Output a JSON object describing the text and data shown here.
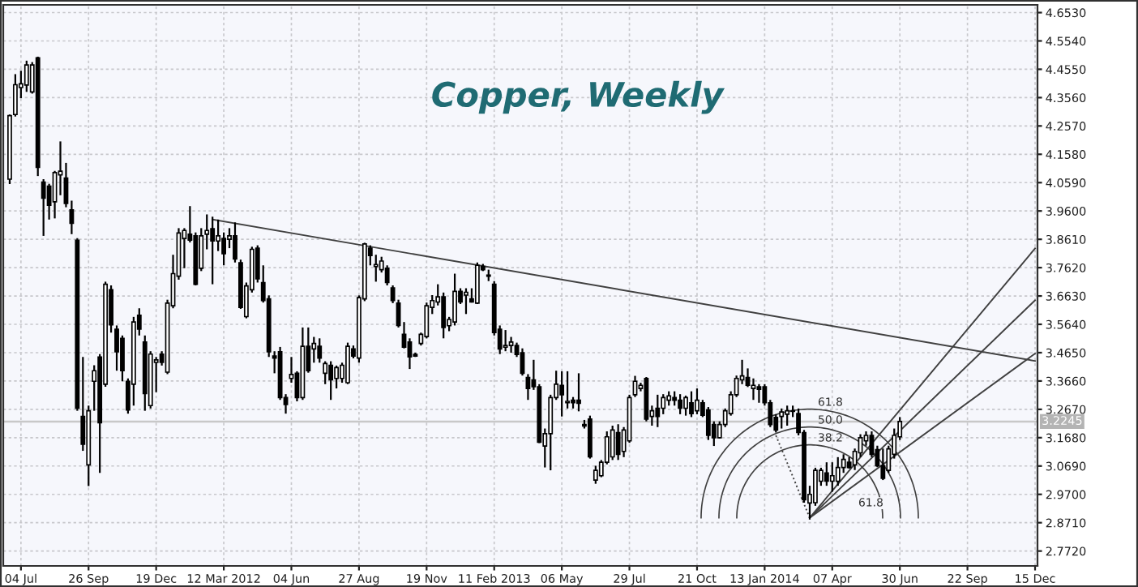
{
  "chart_data": {
    "type": "candlestick",
    "title": "Copper, Weekly",
    "x": [
      "2011-06-20",
      "2011-06-27",
      "2011-07-04",
      "2011-07-11",
      "2011-07-18",
      "2011-07-25",
      "2011-08-01",
      "2011-08-08",
      "2011-08-15",
      "2011-08-22",
      "2011-08-29",
      "2011-09-05",
      "2011-09-12",
      "2011-09-19",
      "2011-09-26",
      "2011-10-03",
      "2011-10-10",
      "2011-10-17",
      "2011-10-24",
      "2011-10-31",
      "2011-11-07",
      "2011-11-14",
      "2011-11-21",
      "2011-11-28",
      "2011-12-05",
      "2011-12-12",
      "2011-12-19",
      "2011-12-26",
      "2012-01-02",
      "2012-01-09",
      "2012-01-16",
      "2012-01-23",
      "2012-01-30",
      "2012-02-06",
      "2012-02-13",
      "2012-02-20",
      "2012-02-27",
      "2012-03-05",
      "2012-03-12",
      "2012-03-19",
      "2012-03-26",
      "2012-04-02",
      "2012-04-09",
      "2012-04-16",
      "2012-04-23",
      "2012-04-30",
      "2012-05-07",
      "2012-05-14",
      "2012-05-21",
      "2012-05-28",
      "2012-06-04",
      "2012-06-11",
      "2012-06-18",
      "2012-06-25",
      "2012-07-02",
      "2012-07-09",
      "2012-07-16",
      "2012-07-23",
      "2012-07-30",
      "2012-08-06",
      "2012-08-13",
      "2012-08-20",
      "2012-08-27",
      "2012-09-03",
      "2012-09-10",
      "2012-09-17",
      "2012-09-24",
      "2012-10-01",
      "2012-10-08",
      "2012-10-15",
      "2012-10-22",
      "2012-10-29",
      "2012-11-05",
      "2012-11-12",
      "2012-11-19",
      "2012-11-26",
      "2012-12-03",
      "2012-12-10",
      "2012-12-17",
      "2012-12-24",
      "2012-12-31",
      "2013-01-07",
      "2013-01-14",
      "2013-01-21",
      "2013-01-28",
      "2013-02-04",
      "2013-02-11",
      "2013-02-18",
      "2013-02-25",
      "2013-03-04",
      "2013-03-11",
      "2013-03-18",
      "2013-03-25",
      "2013-04-01",
      "2013-04-08",
      "2013-04-15",
      "2013-04-22",
      "2013-04-29",
      "2013-05-06",
      "2013-05-13",
      "2013-05-20",
      "2013-05-27",
      "2013-06-03",
      "2013-06-10",
      "2013-06-17",
      "2013-06-24",
      "2013-07-01",
      "2013-07-08",
      "2013-07-15",
      "2013-07-22",
      "2013-07-29",
      "2013-08-05",
      "2013-08-12",
      "2013-08-19",
      "2013-08-26",
      "2013-09-02",
      "2013-09-09",
      "2013-09-16",
      "2013-09-23",
      "2013-09-30",
      "2013-10-07",
      "2013-10-14",
      "2013-10-21",
      "2013-10-28",
      "2013-11-04",
      "2013-11-11",
      "2013-11-18",
      "2013-11-25",
      "2013-12-02",
      "2013-12-09",
      "2013-12-16",
      "2013-12-23",
      "2013-12-30",
      "2014-01-06",
      "2014-01-13",
      "2014-01-20",
      "2014-01-27",
      "2014-02-03",
      "2014-02-10",
      "2014-02-17",
      "2014-02-24",
      "2014-03-03",
      "2014-03-10",
      "2014-03-17",
      "2014-03-24",
      "2014-03-31",
      "2014-04-07",
      "2014-04-14",
      "2014-04-21",
      "2014-04-28",
      "2014-05-05",
      "2014-05-12",
      "2014-05-19",
      "2014-05-26",
      "2014-06-02",
      "2014-06-09",
      "2014-06-16",
      "2014-06-23",
      "2014-06-30"
    ],
    "series": [
      {
        "type": "line",
        "x": [
          "2012-02-27",
          "2014-12-15"
        ],
        "values": [
          3.93,
          3.436
        ],
        "color": "#404040",
        "line_style": "solid"
      },
      {
        "type": "line",
        "x": [
          "2014-01-27",
          "2014-03-10"
        ],
        "values": [
          3.176,
          2.888
        ],
        "color": "#404040",
        "line_style": "dotted"
      },
      {
        "type": "line",
        "x": [
          "2014-03-10",
          "2014-12-15"
        ],
        "values": [
          2.888,
          3.829
        ],
        "color": "#404040",
        "line_style": "solid"
      },
      {
        "type": "line",
        "x": [
          "2014-03-10",
          "2014-12-15"
        ],
        "values": [
          2.888,
          3.648
        ],
        "color": "#404040",
        "line_style": "solid"
      },
      {
        "type": "line",
        "x": [
          "2014-03-10",
          "2014-12-15"
        ],
        "values": [
          2.888,
          3.462
        ],
        "color": "#404040",
        "line_style": "solid"
      },
      {
        "color": "#000000",
        "ohlc": [
          [
            4.071,
            4.297,
            4.054,
            4.293
          ],
          [
            4.297,
            4.438,
            4.29,
            4.401
          ],
          [
            4.391,
            4.45,
            4.354,
            4.404
          ],
          [
            4.4,
            4.485,
            4.376,
            4.47
          ],
          [
            4.376,
            4.48,
            4.37,
            4.47
          ],
          [
            4.495,
            4.499,
            4.082,
            4.112
          ],
          [
            4.061,
            4.071,
            3.873,
            4.005
          ],
          [
            4.047,
            4.055,
            3.93,
            3.98
          ],
          [
            3.992,
            4.1,
            3.934,
            4.094
          ],
          [
            4.086,
            4.203,
            4.015,
            4.099
          ],
          [
            4.075,
            4.128,
            3.973,
            3.986
          ],
          [
            3.964,
            3.996,
            3.879,
            3.917
          ],
          [
            3.858,
            3.865,
            3.262,
            3.271
          ],
          [
            3.242,
            3.45,
            3.122,
            3.145
          ],
          [
            3.073,
            3.28,
            2.999,
            3.262
          ],
          [
            3.365,
            3.421,
            3.262,
            3.402
          ],
          [
            3.45,
            3.46,
            3.045,
            3.22
          ],
          [
            3.355,
            3.713,
            3.346,
            3.704
          ],
          [
            3.685,
            3.7,
            3.535,
            3.562
          ],
          [
            3.547,
            3.56,
            3.402,
            3.468
          ],
          [
            3.515,
            3.525,
            3.365,
            3.402
          ],
          [
            3.365,
            3.375,
            3.252,
            3.265
          ],
          [
            3.355,
            3.59,
            3.28,
            3.572
          ],
          [
            3.596,
            3.62,
            3.525,
            3.547
          ],
          [
            3.502,
            3.525,
            3.262,
            3.322
          ],
          [
            3.28,
            3.47,
            3.27,
            3.46
          ],
          [
            3.431,
            3.45,
            3.327,
            3.44
          ],
          [
            3.46,
            3.47,
            3.42,
            3.431
          ],
          [
            3.397,
            3.65,
            3.39,
            3.638
          ],
          [
            3.629,
            3.807,
            3.62,
            3.741
          ],
          [
            3.732,
            3.9,
            3.72,
            3.883
          ],
          [
            3.864,
            3.9,
            3.76,
            3.892
          ],
          [
            3.879,
            3.977,
            3.85,
            3.858
          ],
          [
            3.873,
            3.885,
            3.7,
            3.704
          ],
          [
            3.76,
            3.9,
            3.75,
            3.873
          ],
          [
            3.879,
            3.948,
            3.826,
            3.892
          ],
          [
            3.898,
            3.94,
            3.704,
            3.855
          ],
          [
            3.855,
            3.93,
            3.82,
            3.873
          ],
          [
            3.864,
            3.885,
            3.77,
            3.811
          ],
          [
            3.861,
            3.9,
            3.83,
            3.873
          ],
          [
            3.873,
            3.92,
            3.78,
            3.792
          ],
          [
            3.779,
            3.79,
            3.618,
            3.623
          ],
          [
            3.591,
            3.71,
            3.585,
            3.698
          ],
          [
            3.685,
            3.835,
            3.675,
            3.826
          ],
          [
            3.83,
            3.84,
            3.71,
            3.723
          ],
          [
            3.71,
            3.77,
            3.64,
            3.647
          ],
          [
            3.653,
            3.665,
            3.45,
            3.468
          ],
          [
            3.453,
            3.47,
            3.393,
            3.446
          ],
          [
            3.468,
            3.485,
            3.3,
            3.308
          ],
          [
            3.308,
            3.32,
            3.252,
            3.284
          ],
          [
            3.375,
            3.45,
            3.36,
            3.389
          ],
          [
            3.393,
            3.4,
            3.295,
            3.308
          ],
          [
            3.308,
            3.553,
            3.3,
            3.487
          ],
          [
            3.487,
            3.553,
            3.395,
            3.402
          ],
          [
            3.478,
            3.52,
            3.43,
            3.497
          ],
          [
            3.487,
            3.515,
            3.43,
            3.446
          ],
          [
            3.393,
            3.435,
            3.355,
            3.427
          ],
          [
            3.421,
            3.435,
            3.3,
            3.37
          ],
          [
            3.375,
            3.42,
            3.34,
            3.413
          ],
          [
            3.375,
            3.43,
            3.36,
            3.421
          ],
          [
            3.36,
            3.5,
            3.355,
            3.487
          ],
          [
            3.478,
            3.49,
            3.445,
            3.453
          ],
          [
            3.446,
            3.665,
            3.43,
            3.657
          ],
          [
            3.653,
            3.849,
            3.645,
            3.845
          ],
          [
            3.83,
            3.84,
            3.77,
            3.804
          ],
          [
            3.766,
            3.807,
            3.713,
            3.773
          ],
          [
            3.755,
            3.8,
            3.745,
            3.785
          ],
          [
            3.76,
            3.77,
            3.7,
            3.71
          ],
          [
            3.691,
            3.7,
            3.638,
            3.647
          ],
          [
            3.638,
            3.65,
            3.553,
            3.56
          ],
          [
            3.529,
            3.572,
            3.48,
            3.484
          ],
          [
            3.502,
            3.515,
            3.408,
            3.45
          ],
          [
            3.459,
            3.465,
            3.45,
            3.453
          ],
          [
            3.497,
            3.535,
            3.49,
            3.529
          ],
          [
            3.521,
            3.64,
            3.515,
            3.629
          ],
          [
            3.623,
            3.666,
            3.6,
            3.647
          ],
          [
            3.642,
            3.704,
            3.63,
            3.66
          ],
          [
            3.66,
            3.675,
            3.515,
            3.553
          ],
          [
            3.559,
            3.59,
            3.54,
            3.581
          ],
          [
            3.572,
            3.741,
            3.56,
            3.679
          ],
          [
            3.679,
            3.69,
            3.635,
            3.642
          ],
          [
            3.666,
            3.69,
            3.6,
            3.676
          ],
          [
            3.653,
            3.69,
            3.64,
            3.642
          ],
          [
            3.638,
            3.78,
            3.635,
            3.77
          ],
          [
            3.766,
            3.775,
            3.75,
            3.755
          ],
          [
            3.736,
            3.755,
            3.715,
            3.732
          ],
          [
            3.704,
            3.715,
            3.525,
            3.535
          ],
          [
            3.547,
            3.56,
            3.46,
            3.478
          ],
          [
            3.484,
            3.544,
            3.47,
            3.49
          ],
          [
            3.49,
            3.52,
            3.465,
            3.502
          ],
          [
            3.49,
            3.5,
            3.45,
            3.459
          ],
          [
            3.465,
            3.48,
            3.385,
            3.393
          ],
          [
            3.378,
            3.39,
            3.3,
            3.34
          ],
          [
            3.37,
            3.44,
            3.335,
            3.346
          ],
          [
            3.346,
            3.355,
            3.149,
            3.152
          ],
          [
            3.139,
            3.2,
            3.064,
            3.182
          ],
          [
            3.182,
            3.318,
            3.054,
            3.308
          ],
          [
            3.308,
            3.402,
            3.3,
            3.355
          ],
          [
            3.351,
            3.4,
            3.242,
            3.318
          ],
          [
            3.29,
            3.4,
            3.27,
            3.295
          ],
          [
            3.299,
            3.31,
            3.27,
            3.29
          ],
          [
            3.299,
            3.393,
            3.26,
            3.288
          ],
          [
            3.214,
            3.23,
            3.2,
            3.209
          ],
          [
            3.233,
            3.245,
            3.095,
            3.101
          ],
          [
            3.02,
            3.07,
            3.007,
            3.054
          ],
          [
            3.035,
            3.09,
            3.03,
            3.082
          ],
          [
            3.082,
            3.19,
            3.075,
            3.171
          ],
          [
            3.101,
            3.21,
            3.09,
            3.195
          ],
          [
            3.186,
            3.215,
            3.09,
            3.11
          ],
          [
            3.12,
            3.205,
            3.1,
            3.195
          ],
          [
            3.157,
            3.318,
            3.15,
            3.308
          ],
          [
            3.318,
            3.384,
            3.31,
            3.365
          ],
          [
            3.34,
            3.36,
            3.33,
            3.351
          ],
          [
            3.375,
            3.38,
            3.225,
            3.233
          ],
          [
            3.242,
            3.28,
            3.21,
            3.262
          ],
          [
            3.271,
            3.318,
            3.205,
            3.242
          ],
          [
            3.271,
            3.32,
            3.25,
            3.308
          ],
          [
            3.299,
            3.33,
            3.28,
            3.314
          ],
          [
            3.308,
            3.33,
            3.28,
            3.299
          ],
          [
            3.299,
            3.32,
            3.25,
            3.271
          ],
          [
            3.271,
            3.315,
            3.245,
            3.308
          ],
          [
            3.29,
            3.33,
            3.24,
            3.252
          ],
          [
            3.262,
            3.34,
            3.25,
            3.299
          ],
          [
            3.29,
            3.3,
            3.24,
            3.246
          ],
          [
            3.265,
            3.275,
            3.16,
            3.176
          ],
          [
            3.214,
            3.225,
            3.139,
            3.168
          ],
          [
            3.168,
            3.225,
            3.165,
            3.214
          ],
          [
            3.214,
            3.27,
            3.205,
            3.262
          ],
          [
            3.252,
            3.33,
            3.245,
            3.318
          ],
          [
            3.318,
            3.385,
            3.31,
            3.375
          ],
          [
            3.37,
            3.44,
            3.355,
            3.384
          ],
          [
            3.378,
            3.41,
            3.345,
            3.351
          ],
          [
            3.34,
            3.375,
            3.3,
            3.351
          ],
          [
            3.346,
            3.355,
            3.29,
            3.337
          ],
          [
            3.346,
            3.355,
            3.28,
            3.29
          ],
          [
            3.29,
            3.3,
            3.205,
            3.214
          ],
          [
            3.239,
            3.25,
            3.186,
            3.195
          ],
          [
            3.242,
            3.27,
            3.2,
            3.258
          ],
          [
            3.25,
            3.28,
            3.21,
            3.262
          ],
          [
            3.26,
            3.28,
            3.24,
            3.262
          ],
          [
            3.252,
            3.27,
            3.176,
            3.186
          ],
          [
            3.186,
            3.195,
            2.941,
            2.951
          ],
          [
            2.94,
            3.0,
            2.882,
            2.97
          ],
          [
            2.941,
            3.063,
            2.93,
            3.054
          ],
          [
            3.016,
            3.063,
            3.0,
            3.054
          ],
          [
            3.045,
            3.082,
            3.0,
            3.016
          ],
          [
            3.016,
            3.082,
            2.979,
            3.035
          ],
          [
            3.016,
            3.1,
            3.0,
            3.064
          ],
          [
            3.064,
            3.11,
            3.045,
            3.092
          ],
          [
            3.082,
            3.1,
            3.06,
            3.064
          ],
          [
            3.073,
            3.13,
            3.055,
            3.12
          ],
          [
            3.115,
            3.18,
            3.1,
            3.168
          ],
          [
            3.157,
            3.19,
            3.14,
            3.176
          ],
          [
            3.176,
            3.19,
            3.1,
            3.11
          ],
          [
            3.126,
            3.14,
            3.065,
            3.07
          ],
          [
            3.07,
            3.13,
            3.02,
            3.026
          ],
          [
            3.054,
            3.14,
            3.045,
            3.129
          ],
          [
            3.11,
            3.2,
            3.095,
            3.176
          ],
          [
            3.171,
            3.24,
            3.16,
            3.2245
          ]
        ]
      }
    ],
    "xlim": [
      "2011-06-12",
      "2014-12-18"
    ],
    "xticks": [
      {
        "value": "2011-07-04",
        "label": "04 Jul"
      },
      {
        "value": "2011-09-26",
        "label": "26 Sep"
      },
      {
        "value": "2011-12-19",
        "label": "19 Dec"
      },
      {
        "value": "2012-03-12",
        "label": "12 Mar 2012"
      },
      {
        "value": "2012-06-04",
        "label": "04 Jun"
      },
      {
        "value": "2012-08-27",
        "label": "27 Aug"
      },
      {
        "value": "2012-11-19",
        "label": "19 Nov"
      },
      {
        "value": "2013-02-11",
        "label": "11 Feb 2013"
      },
      {
        "value": "2013-05-06",
        "label": "06 May"
      },
      {
        "value": "2013-07-29",
        "label": "29 Jul"
      },
      {
        "value": "2013-10-21",
        "label": "21 Oct"
      },
      {
        "value": "2014-01-13",
        "label": "13 Jan 2014"
      },
      {
        "value": "2014-04-07",
        "label": "07 Apr"
      },
      {
        "value": "2014-06-30",
        "label": "30 Jun"
      },
      {
        "value": "2014-09-22",
        "label": "22 Sep"
      },
      {
        "value": "2014-12-15",
        "label": "15 Dec"
      }
    ],
    "ylim": [
      2.72,
      4.68
    ],
    "yticks": [
      {
        "value": 4.653,
        "label": "4.6530"
      },
      {
        "value": 4.554,
        "label": "4.5540"
      },
      {
        "value": 4.455,
        "label": "4.4550"
      },
      {
        "value": 4.356,
        "label": "4.3560"
      },
      {
        "value": 4.257,
        "label": "4.2570"
      },
      {
        "value": 4.158,
        "label": "4.1580"
      },
      {
        "value": 4.059,
        "label": "4.0590"
      },
      {
        "value": 3.96,
        "label": "3.9600"
      },
      {
        "value": 3.861,
        "label": "3.8610"
      },
      {
        "value": 3.762,
        "label": "3.7620"
      },
      {
        "value": 3.663,
        "label": "3.6630"
      },
      {
        "value": 3.564,
        "label": "3.5640"
      },
      {
        "value": 3.465,
        "label": "3.4650"
      },
      {
        "value": 3.366,
        "label": "3.3660"
      },
      {
        "value": 3.267,
        "label": "3.2670"
      },
      {
        "value": 3.168,
        "label": "3.1680"
      },
      {
        "value": 3.069,
        "label": "3.0690"
      },
      {
        "value": 2.97,
        "label": "2.9700"
      },
      {
        "value": 2.871,
        "label": "2.8710"
      },
      {
        "value": 2.772,
        "label": "2.7720"
      }
    ],
    "ref_lines": [
      {
        "axis": "y",
        "value": 3.2245,
        "label": "3.2245",
        "color": "#c8c8c8"
      }
    ],
    "annotations": [
      "61.8",
      "50.0",
      "38.2",
      "61.8"
    ],
    "grid": true
  }
}
